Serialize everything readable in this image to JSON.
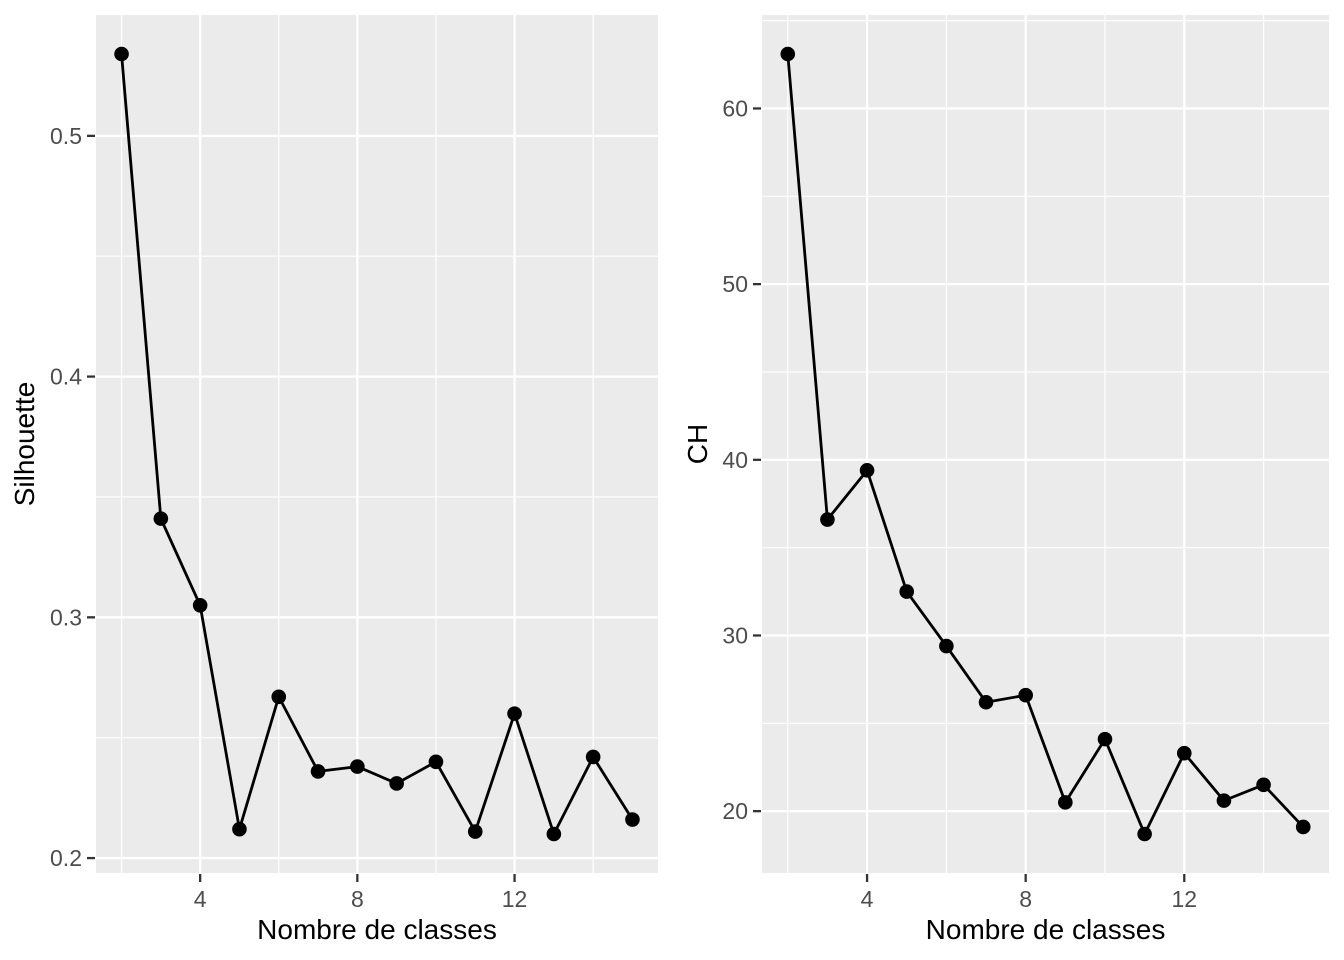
{
  "page": {
    "background": "#FFFFFF"
  },
  "style": {
    "panel_bg": "#EBEBEB",
    "grid_color": "#FFFFFF",
    "series_color": "#000000",
    "tick_label_color": "#4D4D4D",
    "tick_mark_color": "#333333",
    "axis_title_color": "#000000"
  },
  "chart_data": [
    {
      "type": "line",
      "title": "",
      "xlabel": "Nombre de classes",
      "ylabel": "Silhouette",
      "x": [
        2,
        3,
        4,
        5,
        6,
        7,
        8,
        9,
        10,
        11,
        12,
        13,
        14,
        15
      ],
      "y": [
        0.534,
        0.341,
        0.305,
        0.212,
        0.267,
        0.236,
        0.238,
        0.231,
        0.24,
        0.211,
        0.26,
        0.21,
        0.242,
        0.216
      ],
      "x_tick_values": [
        4,
        8,
        12
      ],
      "x_tick_labels": [
        "4",
        "8",
        "12"
      ],
      "y_tick_values": [
        0.2,
        0.3,
        0.4,
        0.5
      ],
      "y_tick_labels": [
        "0.2",
        "0.3",
        "0.4",
        "0.5"
      ],
      "x_minor_values": [
        2,
        6,
        10,
        14
      ],
      "y_minor_values": [
        0.25,
        0.35,
        0.45
      ],
      "xlim": [
        1.35,
        15.65
      ],
      "ylim": [
        0.1938,
        0.5502
      ],
      "grid": "major+minor",
      "legend": "none",
      "marker": "filled-circle"
    },
    {
      "type": "line",
      "title": "",
      "xlabel": "Nombre de classes",
      "ylabel": "CH",
      "x": [
        2,
        3,
        4,
        5,
        6,
        7,
        8,
        9,
        10,
        11,
        12,
        13,
        14,
        15
      ],
      "y": [
        63.1,
        36.6,
        39.4,
        32.5,
        29.4,
        26.2,
        26.6,
        20.5,
        24.1,
        18.7,
        23.3,
        20.6,
        21.5,
        19.1
      ],
      "x_tick_values": [
        4,
        8,
        12
      ],
      "x_tick_labels": [
        "4",
        "8",
        "12"
      ],
      "y_tick_values": [
        20,
        30,
        40,
        50,
        60
      ],
      "y_tick_labels": [
        "20",
        "30",
        "40",
        "50",
        "60"
      ],
      "x_minor_values": [
        2,
        6,
        10,
        14
      ],
      "y_minor_values": [
        25,
        35,
        45,
        55,
        65
      ],
      "xlim": [
        1.35,
        15.65
      ],
      "ylim": [
        16.48,
        65.32
      ],
      "grid": "major+minor",
      "legend": "none",
      "marker": "filled-circle"
    }
  ]
}
